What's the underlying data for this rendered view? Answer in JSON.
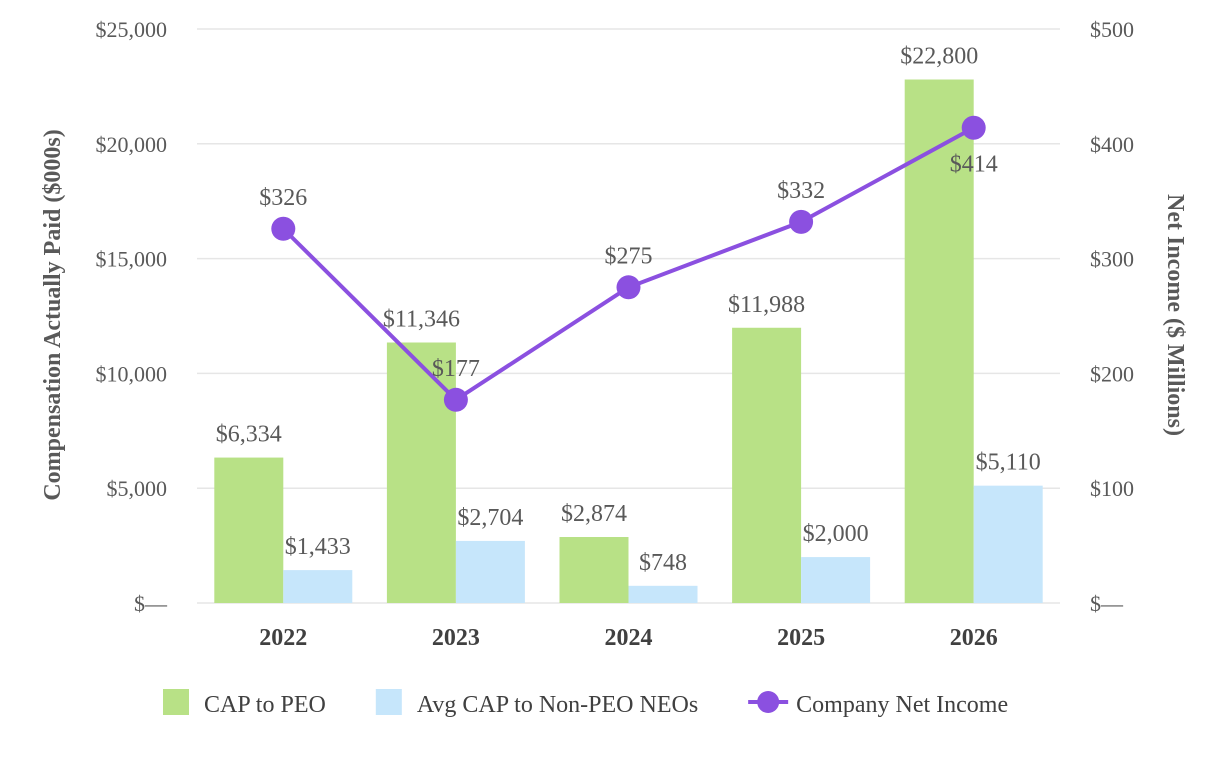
{
  "chart_data": {
    "type": "bar",
    "categories": [
      "2022",
      "2023",
      "2024",
      "2025",
      "2026"
    ],
    "series": [
      {
        "name": "CAP to PEO",
        "kind": "bar",
        "axis": "left",
        "color": "#b8e186",
        "values": [
          6334,
          11346,
          2874,
          11988,
          22800
        ],
        "labels": [
          "$6,334",
          "$11,346",
          "$2,874",
          "$11,988",
          "$22,800"
        ]
      },
      {
        "name": "Avg CAP to Non-PEO NEOs",
        "kind": "bar",
        "axis": "left",
        "color": "#c6e6fb",
        "values": [
          1433,
          2704,
          748,
          2000,
          5110
        ],
        "labels": [
          "$1,433",
          "$2,704",
          "$748",
          "$2,000",
          "$5,110"
        ]
      },
      {
        "name": "Company Net Income",
        "kind": "line",
        "axis": "right",
        "color": "#8b50e0",
        "values": [
          326,
          177,
          275,
          332,
          414
        ],
        "labels": [
          "$326",
          "$177",
          "$275",
          "$332",
          "$414"
        ]
      }
    ],
    "y_left": {
      "label": "Compensation Actually Paid ($000s)",
      "range": [
        0,
        25000
      ],
      "ticks": [
        0,
        5000,
        10000,
        15000,
        20000,
        25000
      ],
      "tick_labels": [
        "$—",
        "$5,000",
        "$10,000",
        "$15,000",
        "$20,000",
        "$25,000"
      ]
    },
    "y_right": {
      "label": "Net Income ($ Millions)",
      "range": [
        0,
        500
      ],
      "ticks": [
        0,
        100,
        200,
        300,
        400,
        500
      ],
      "tick_labels": [
        "$—",
        "$100",
        "$200",
        "$300",
        "$400",
        "$500"
      ]
    },
    "grid": true,
    "legend_position": "bottom"
  }
}
